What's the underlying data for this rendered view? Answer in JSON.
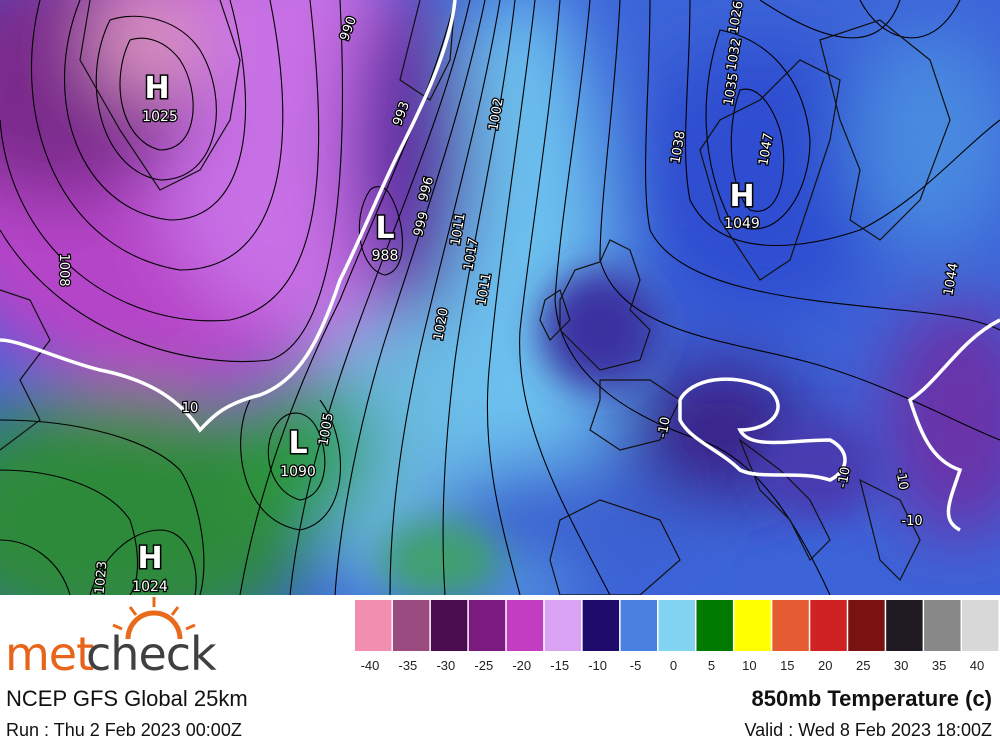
{
  "branding": {
    "logo_met": "met",
    "logo_check": "check",
    "model": "NCEP GFS Global 25km",
    "run": "Run : Thu 2 Feb 2023 00:00Z"
  },
  "product": {
    "title": "850mb Temperature (c)",
    "valid": "Valid : Wed 8 Feb 2023 18:00Z"
  },
  "legend": {
    "colors": [
      "#f28fb0",
      "#9a4c80",
      "#4a0c4e",
      "#7b1b80",
      "#c23dc2",
      "#d9a2f2",
      "#1e0b6c",
      "#4a80e0",
      "#82d2f2",
      "#007a00",
      "#ffff00",
      "#e65c32",
      "#d02222",
      "#7a1212",
      "#201a22",
      "#888888",
      "#d8d8d8"
    ],
    "ticks": [
      -40,
      -35,
      -30,
      -25,
      -20,
      -15,
      -10,
      -5,
      0,
      5,
      10,
      15,
      20,
      25,
      30,
      35,
      40
    ]
  },
  "pressure_centers": [
    {
      "symbol": "H",
      "value": "1025"
    },
    {
      "symbol": "L",
      "value": "988"
    },
    {
      "symbol": "H",
      "value": "1049"
    },
    {
      "symbol": "L",
      "value": "1090"
    },
    {
      "symbol": "H",
      "value": "1024"
    }
  ],
  "contour_labels": [
    "990",
    "1008",
    "993",
    "996",
    "999",
    "1011",
    "1017",
    "1020",
    "1005",
    "1002",
    "1026",
    "1032",
    "1035",
    "1038",
    "1047",
    "1044",
    "1023",
    "10",
    "-10",
    "-10",
    "-10",
    "-10",
    "1011"
  ]
}
